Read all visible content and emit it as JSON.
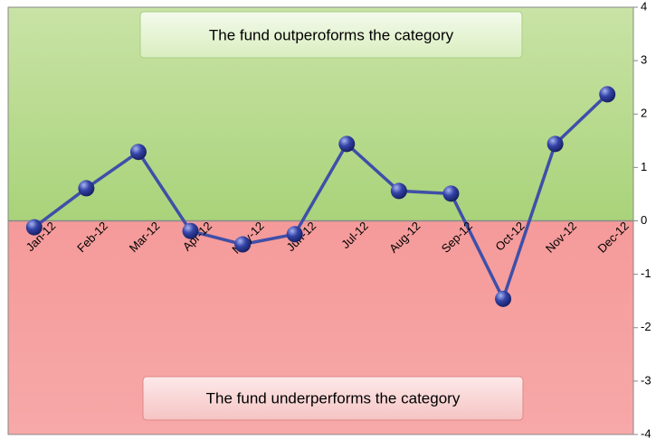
{
  "chart_data": {
    "type": "line",
    "categories": [
      "Jan-12",
      "Feb-12",
      "Mar-12",
      "Apr-12",
      "May-12",
      "Jun-12",
      "Jul-12",
      "Aug-12",
      "Sep-12",
      "Oct-12",
      "Nov-12",
      "Dec-12"
    ],
    "values": [
      -0.12,
      0.61,
      1.29,
      -0.19,
      -0.44,
      -0.25,
      1.44,
      0.56,
      0.51,
      -1.46,
      1.44,
      2.37
    ],
    "color": "#3f4fa8",
    "ylim": [
      -4,
      4
    ],
    "yticks": [
      -4,
      -3,
      -2,
      -1,
      0,
      1,
      2,
      3,
      4
    ],
    "annotations": [
      "The fund  outperoforms the category",
      "The fund  underperforms the category"
    ]
  }
}
